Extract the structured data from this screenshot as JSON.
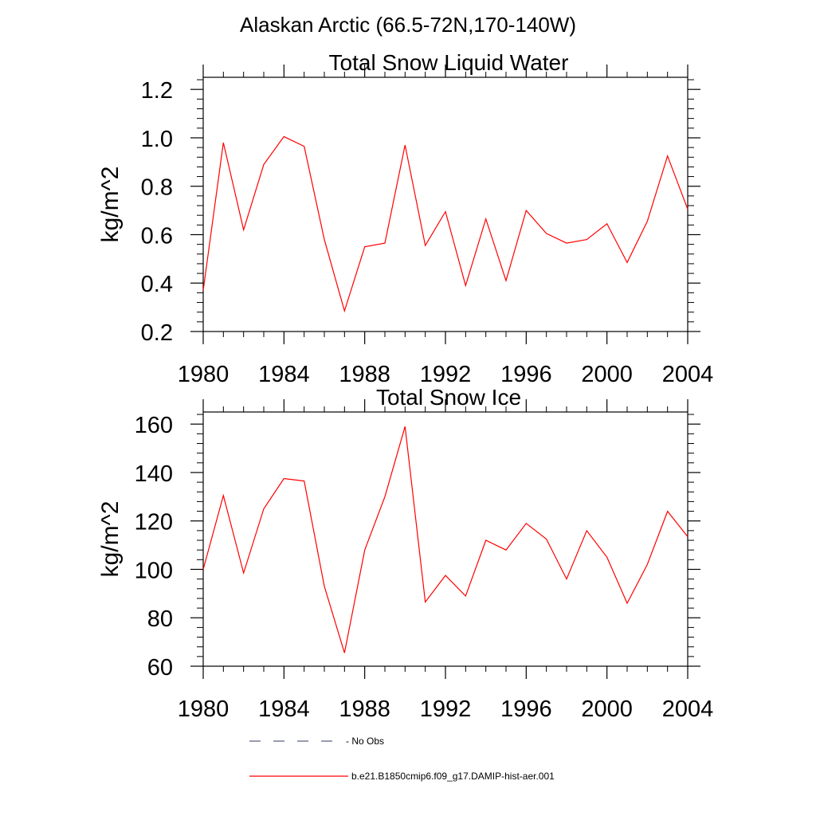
{
  "suptitle": "Alaskan Arctic (66.5-72N,170-140W)",
  "chart_data": [
    {
      "type": "line",
      "title": "Total Snow Liquid Water",
      "xlabel": "",
      "ylabel": "kg/m^2",
      "xlim": [
        1980,
        2004
      ],
      "ylim": [
        0.2,
        1.2
      ],
      "xticks": [
        1980,
        1984,
        1988,
        1992,
        1996,
        2000,
        2004
      ],
      "yticks": [
        0.2,
        0.4,
        0.6,
        0.8,
        1.0,
        1.2
      ],
      "ytick_labels": [
        "0.2",
        "0.4",
        "0.6",
        "0.8",
        "1.0",
        "1.2"
      ],
      "grid": false,
      "series": [
        {
          "name": "b.e21.B1850cmip6.f09_g17.DAMIP-hist-aer.001",
          "color": "#ff0000",
          "x": [
            1980,
            1981,
            1982,
            1983,
            1984,
            1985,
            1986,
            1987,
            1988,
            1989,
            1990,
            1991,
            1992,
            1993,
            1994,
            1995,
            1996,
            1997,
            1998,
            1999,
            2000,
            2001,
            2002,
            2003,
            2004
          ],
          "values": [
            0.37,
            0.98,
            0.62,
            0.89,
            1.005,
            0.965,
            0.58,
            0.285,
            0.55,
            0.565,
            0.97,
            0.555,
            0.695,
            0.39,
            0.665,
            0.41,
            0.7,
            0.605,
            0.565,
            0.58,
            0.645,
            0.485,
            0.655,
            0.925,
            0.705
          ]
        }
      ]
    },
    {
      "type": "line",
      "title": "Total Snow Ice",
      "xlabel": "",
      "ylabel": "kg/m^2",
      "xlim": [
        1980,
        2004
      ],
      "ylim": [
        60,
        165
      ],
      "xticks": [
        1980,
        1984,
        1988,
        1992,
        1996,
        2000,
        2004
      ],
      "yticks": [
        60,
        80,
        100,
        120,
        140,
        160
      ],
      "ytick_labels": [
        "60",
        "80",
        "100",
        "120",
        "140",
        "160"
      ],
      "grid": false,
      "series": [
        {
          "name": "b.e21.B1850cmip6.f09_g17.DAMIP-hist-aer.001",
          "color": "#ff0000",
          "x": [
            1980,
            1981,
            1982,
            1983,
            1984,
            1985,
            1986,
            1987,
            1988,
            1989,
            1990,
            1991,
            1992,
            1993,
            1994,
            1995,
            1996,
            1997,
            1998,
            1999,
            2000,
            2001,
            2002,
            2003,
            2004
          ],
          "values": [
            100,
            130.5,
            98.5,
            125,
            137.5,
            136.5,
            93,
            65.5,
            108,
            130,
            159,
            86.5,
            97.5,
            89,
            112,
            108,
            119,
            112.5,
            96,
            116,
            105,
            86,
            102,
            124,
            113.5
          ]
        }
      ]
    }
  ],
  "legend": {
    "placement": "bottom",
    "entries": [
      {
        "label": "No Obs",
        "style": "dashed",
        "color": "#5a6080"
      },
      {
        "label": "b.e21.B1850cmip6.f09_g17.DAMIP-hist-aer.001",
        "style": "solid",
        "color": "#ff0000"
      }
    ]
  }
}
